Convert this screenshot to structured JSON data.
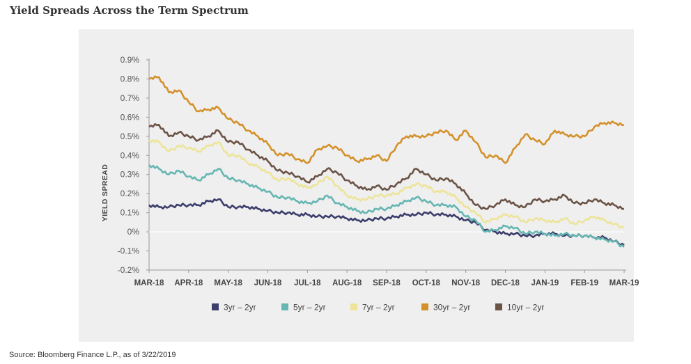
{
  "title": "Yield Spreads Across the Term Spectrum",
  "source": "Source: Bloomberg Finance L.P., as of 3/22/2019",
  "chart_data": {
    "type": "line",
    "title": "Yield Spreads Across the Term Spectrum",
    "xlabel": "",
    "ylabel": "YIELD SPREAD",
    "x_tick_labels": [
      "MAR-18",
      "APR-18",
      "MAY-18",
      "JUN-18",
      "JUL-18",
      "AUG-18",
      "SEP-18",
      "OCT-18",
      "NOV-18",
      "DEC-18",
      "JAN-19",
      "FEB-19",
      "MAR-19"
    ],
    "y_tick_labels": [
      "-0.2%",
      "-0.1%",
      "0%",
      "0.1%",
      "0.2%",
      "0.3%",
      "0.4%",
      "0.5%",
      "0.6%",
      "0.7%",
      "0.8%",
      "0.9%"
    ],
    "y_ticks": [
      -0.2,
      -0.1,
      0,
      0.1,
      0.2,
      0.3,
      0.4,
      0.5,
      0.6,
      0.7,
      0.8,
      0.9
    ],
    "ylim": [
      -0.2,
      0.9
    ],
    "grid": false,
    "legend_position": "bottom",
    "x_unit": "month index (0 = MAR-18, 12 = MAR-19)",
    "x": [
      0,
      0.25,
      0.5,
      0.75,
      1,
      1.25,
      1.5,
      1.75,
      2,
      2.25,
      2.5,
      2.75,
      3,
      3.25,
      3.5,
      3.75,
      4,
      4.25,
      4.5,
      4.75,
      5,
      5.25,
      5.5,
      5.75,
      6,
      6.25,
      6.5,
      6.75,
      7,
      7.25,
      7.5,
      7.75,
      8,
      8.25,
      8.5,
      8.75,
      9,
      9.25,
      9.5,
      9.75,
      10,
      10.25,
      10.5,
      10.75,
      11,
      11.25,
      11.5,
      11.75,
      12
    ],
    "series": [
      {
        "name": "3yr – 2yr",
        "color": "#3b3d6b",
        "values": [
          0.14,
          0.13,
          0.13,
          0.14,
          0.14,
          0.14,
          0.16,
          0.17,
          0.13,
          0.13,
          0.13,
          0.12,
          0.11,
          0.1,
          0.1,
          0.09,
          0.09,
          0.08,
          0.08,
          0.08,
          0.07,
          0.06,
          0.06,
          0.07,
          0.07,
          0.08,
          0.09,
          0.09,
          0.1,
          0.09,
          0.09,
          0.08,
          0.06,
          0.05,
          0.01,
          0.0,
          -0.01,
          -0.01,
          -0.02,
          -0.02,
          -0.01,
          -0.01,
          -0.02,
          -0.02,
          -0.02,
          -0.03,
          -0.03,
          -0.05,
          -0.07
        ]
      },
      {
        "name": "5yr – 2yr",
        "color": "#66b6b2",
        "values": [
          0.35,
          0.33,
          0.3,
          0.32,
          0.29,
          0.27,
          0.3,
          0.33,
          0.28,
          0.27,
          0.25,
          0.23,
          0.21,
          0.18,
          0.18,
          0.16,
          0.15,
          0.16,
          0.19,
          0.15,
          0.13,
          0.11,
          0.1,
          0.12,
          0.12,
          0.14,
          0.16,
          0.18,
          0.16,
          0.14,
          0.14,
          0.13,
          0.08,
          0.06,
          0.0,
          0.01,
          0.03,
          0.02,
          -0.01,
          0.0,
          -0.01,
          -0.02,
          -0.01,
          -0.02,
          -0.02,
          -0.03,
          -0.04,
          -0.05,
          -0.08
        ]
      },
      {
        "name": "7yr – 2yr",
        "color": "#ede49a",
        "values": [
          0.48,
          0.47,
          0.42,
          0.45,
          0.44,
          0.42,
          0.45,
          0.47,
          0.4,
          0.4,
          0.36,
          0.34,
          0.31,
          0.27,
          0.28,
          0.25,
          0.23,
          0.25,
          0.29,
          0.24,
          0.19,
          0.17,
          0.17,
          0.19,
          0.19,
          0.2,
          0.23,
          0.25,
          0.24,
          0.21,
          0.21,
          0.18,
          0.13,
          0.1,
          0.05,
          0.07,
          0.09,
          0.08,
          0.05,
          0.07,
          0.06,
          0.05,
          0.07,
          0.04,
          0.06,
          0.08,
          0.06,
          0.04,
          0.02
        ]
      },
      {
        "name": "30yr – 2yr",
        "color": "#d4912b",
        "values": [
          0.8,
          0.81,
          0.73,
          0.74,
          0.68,
          0.63,
          0.64,
          0.65,
          0.59,
          0.57,
          0.53,
          0.5,
          0.46,
          0.4,
          0.41,
          0.38,
          0.36,
          0.43,
          0.45,
          0.44,
          0.4,
          0.37,
          0.38,
          0.4,
          0.37,
          0.45,
          0.5,
          0.5,
          0.5,
          0.52,
          0.53,
          0.48,
          0.53,
          0.47,
          0.39,
          0.4,
          0.36,
          0.44,
          0.51,
          0.48,
          0.46,
          0.53,
          0.51,
          0.5,
          0.5,
          0.55,
          0.57,
          0.57,
          0.56
        ]
      },
      {
        "name": "10yr – 2yr",
        "color": "#6b5346",
        "values": [
          0.55,
          0.56,
          0.5,
          0.52,
          0.5,
          0.48,
          0.5,
          0.53,
          0.47,
          0.47,
          0.43,
          0.4,
          0.37,
          0.32,
          0.31,
          0.29,
          0.26,
          0.29,
          0.33,
          0.31,
          0.27,
          0.24,
          0.22,
          0.24,
          0.22,
          0.25,
          0.28,
          0.33,
          0.3,
          0.27,
          0.28,
          0.25,
          0.2,
          0.14,
          0.12,
          0.14,
          0.17,
          0.14,
          0.13,
          0.17,
          0.16,
          0.17,
          0.19,
          0.15,
          0.15,
          0.17,
          0.15,
          0.14,
          0.12
        ]
      }
    ]
  }
}
